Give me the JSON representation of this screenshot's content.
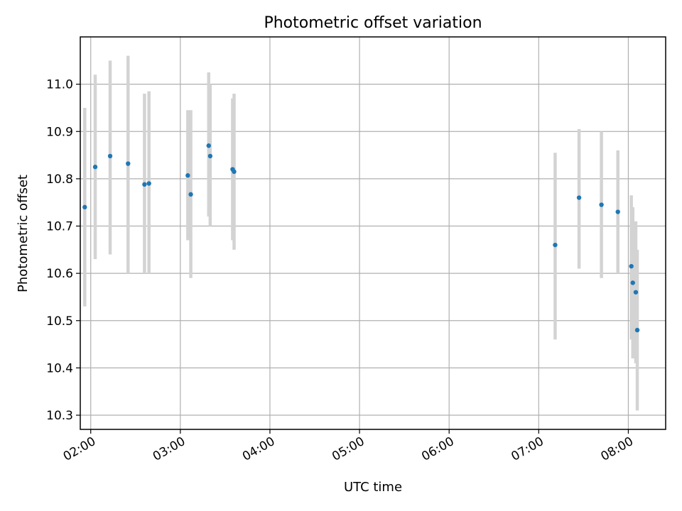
{
  "chart_data": {
    "type": "scatter",
    "title": "Photometric offset variation",
    "xlabel": "UTC time",
    "ylabel": "Photometric offset",
    "x_axis_kind": "time",
    "xlim": [
      "01:53",
      "08:25"
    ],
    "ylim": [
      10.27,
      11.1
    ],
    "grid": true,
    "legend": "none",
    "x_ticks": [
      "02:00",
      "03:00",
      "04:00",
      "05:00",
      "06:00",
      "07:00",
      "08:00"
    ],
    "y_ticks": [
      "10.3",
      "10.4",
      "10.5",
      "10.6",
      "10.7",
      "10.8",
      "10.9",
      "11.0"
    ],
    "point_color": "#1f77b4",
    "errorbar_color": "#d3d3d3",
    "points": [
      {
        "x": "01:56",
        "y": 10.74,
        "low": 10.53,
        "high": 10.95
      },
      {
        "x": "02:03",
        "y": 10.825,
        "low": 10.63,
        "high": 11.02
      },
      {
        "x": "02:13",
        "y": 10.848,
        "low": 10.64,
        "high": 11.05
      },
      {
        "x": "02:25",
        "y": 10.832,
        "low": 10.6,
        "high": 11.06
      },
      {
        "x": "02:36",
        "y": 10.788,
        "low": 10.6,
        "high": 10.98
      },
      {
        "x": "02:39",
        "y": 10.79,
        "low": 10.6,
        "high": 10.985
      },
      {
        "x": "03:05",
        "y": 10.807,
        "low": 10.67,
        "high": 10.945
      },
      {
        "x": "03:07",
        "y": 10.767,
        "low": 10.59,
        "high": 10.945
      },
      {
        "x": "03:19",
        "y": 10.87,
        "low": 10.72,
        "high": 11.025
      },
      {
        "x": "03:20",
        "y": 10.848,
        "low": 10.7,
        "high": 11.0
      },
      {
        "x": "03:35",
        "y": 10.82,
        "low": 10.67,
        "high": 10.97
      },
      {
        "x": "03:36",
        "y": 10.815,
        "low": 10.65,
        "high": 10.98
      },
      {
        "x": "07:11",
        "y": 10.66,
        "low": 10.46,
        "high": 10.855
      },
      {
        "x": "07:27",
        "y": 10.76,
        "low": 10.61,
        "high": 10.905
      },
      {
        "x": "07:42",
        "y": 10.745,
        "low": 10.59,
        "high": 10.9
      },
      {
        "x": "07:53",
        "y": 10.73,
        "low": 10.6,
        "high": 10.86
      },
      {
        "x": "08:02",
        "y": 10.615,
        "low": 10.46,
        "high": 10.765
      },
      {
        "x": "08:03",
        "y": 10.58,
        "low": 10.42,
        "high": 10.74
      },
      {
        "x": "08:05",
        "y": 10.56,
        "low": 10.41,
        "high": 10.71
      },
      {
        "x": "08:06",
        "y": 10.48,
        "low": 10.31,
        "high": 10.65
      }
    ]
  }
}
